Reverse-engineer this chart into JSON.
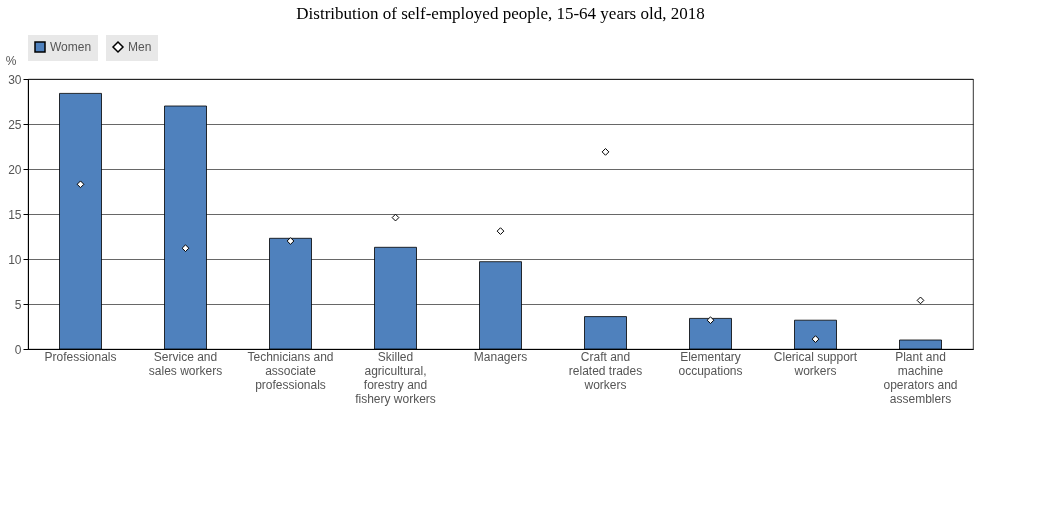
{
  "chart_data": {
    "type": "bar",
    "title": "Distribution of self-employed people, 15-64 years old, 2018",
    "ylabel": "%",
    "categories": [
      "Professionals",
      "Service and sales workers",
      "Technicians and associate professionals",
      "Skilled agricultural, forestry and fishery workers",
      "Managers",
      "Craft and related trades workers",
      "Elementary occupations",
      "Clerical support workers",
      "Plant and machine operators and assemblers"
    ],
    "series": [
      {
        "name": "Women",
        "color": "#4f81bd",
        "values": [
          28.4,
          27.0,
          12.3,
          11.3,
          9.7,
          3.6,
          3.4,
          3.2,
          1.0
        ]
      },
      {
        "name": "Men",
        "type": "scatter",
        "marker": "diamond",
        "color": "#ffffff",
        "values": [
          18.3,
          11.2,
          12.0,
          14.6,
          13.1,
          21.9,
          3.2,
          1.1,
          5.4
        ]
      }
    ],
    "ylim": [
      0,
      30
    ],
    "yticks": [
      0,
      5,
      10,
      15,
      20,
      25,
      30
    ],
    "grid": "y",
    "legend": "top"
  }
}
